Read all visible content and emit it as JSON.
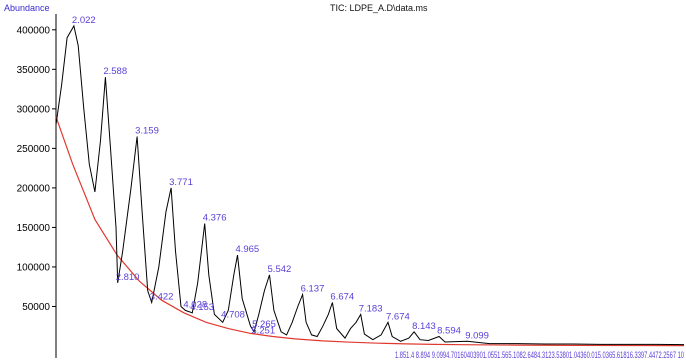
{
  "chart_data": {
    "type": "line",
    "title": "TIC: LDPE_A.D\\data.ms",
    "ylabel": "Abundance",
    "xlabel": "",
    "ylim": [
      0,
      420000
    ],
    "xlim": [
      1.7,
      13.0
    ],
    "y_ticks": [
      50000,
      100000,
      150000,
      200000,
      250000,
      300000,
      350000,
      400000
    ],
    "y_tick_labels": [
      "50000",
      "100000",
      "150000",
      "200000",
      "250000",
      "300000",
      "350000",
      "400000"
    ],
    "grid": false,
    "colors": {
      "trace": "#000000",
      "baseline": "#e03a2f",
      "labels": "#5b3fd8",
      "axis": "#000000"
    },
    "series": [
      {
        "values": [
          [
            1.7,
            280000
          ],
          [
            1.8,
            330000
          ],
          [
            1.9,
            390000
          ],
          [
            2.022,
            405000
          ],
          [
            2.1,
            380000
          ],
          [
            2.2,
            300000
          ],
          [
            2.3,
            230000
          ],
          [
            2.4,
            195000
          ],
          [
            2.5,
            260000
          ],
          [
            2.588,
            340000
          ],
          [
            2.68,
            250000
          ],
          [
            2.78,
            150000
          ],
          [
            2.81,
            80000
          ],
          [
            2.9,
            120000
          ],
          [
            3.05,
            200000
          ],
          [
            3.159,
            265000
          ],
          [
            3.25,
            170000
          ],
          [
            3.35,
            70000
          ],
          [
            3.422,
            55000
          ],
          [
            3.55,
            100000
          ],
          [
            3.68,
            170000
          ],
          [
            3.771,
            200000
          ],
          [
            3.85,
            120000
          ],
          [
            3.95,
            50000
          ],
          [
            4.028,
            45000
          ],
          [
            4.153,
            42000
          ],
          [
            4.25,
            80000
          ],
          [
            4.376,
            155000
          ],
          [
            4.45,
            90000
          ],
          [
            4.55,
            40000
          ],
          [
            4.7,
            30000
          ],
          [
            4.8,
            45000
          ],
          [
            4.9,
            90000
          ],
          [
            4.965,
            115000
          ],
          [
            5.05,
            60000
          ],
          [
            5.2,
            25000
          ],
          [
            5.265,
            18000
          ],
          [
            5.35,
            40000
          ],
          [
            5.45,
            70000
          ],
          [
            5.542,
            90000
          ],
          [
            5.62,
            45000
          ],
          [
            5.75,
            18000
          ],
          [
            5.85,
            14000
          ],
          [
            5.95,
            30000
          ],
          [
            6.05,
            50000
          ],
          [
            6.137,
            65000
          ],
          [
            6.2,
            30000
          ],
          [
            6.3,
            14000
          ],
          [
            6.4,
            12000
          ],
          [
            6.5,
            25000
          ],
          [
            6.6,
            40000
          ],
          [
            6.674,
            55000
          ],
          [
            6.75,
            22000
          ],
          [
            6.9,
            10000
          ],
          [
            7.0,
            22000
          ],
          [
            7.1,
            30000
          ],
          [
            7.183,
            40000
          ],
          [
            7.25,
            15000
          ],
          [
            7.4,
            8000
          ],
          [
            7.55,
            14000
          ],
          [
            7.674,
            30000
          ],
          [
            7.75,
            12000
          ],
          [
            7.9,
            6000
          ],
          [
            8.05,
            10000
          ],
          [
            8.143,
            18000
          ],
          [
            8.25,
            8000
          ],
          [
            8.4,
            7000
          ],
          [
            8.594,
            12000
          ],
          [
            8.7,
            5000
          ],
          [
            9.099,
            6000
          ],
          [
            9.5,
            3000
          ],
          [
            10.0,
            3000
          ],
          [
            10.5,
            2500
          ],
          [
            11.0,
            2500
          ],
          [
            11.5,
            2000
          ],
          [
            12.0,
            2000
          ],
          [
            12.5,
            2000
          ],
          [
            13.0,
            1800
          ]
        ]
      },
      {
        "values": [
          [
            1.7,
            290000
          ],
          [
            2.0,
            230000
          ],
          [
            2.4,
            160000
          ],
          [
            2.8,
            115000
          ],
          [
            3.2,
            82000
          ],
          [
            3.6,
            58000
          ],
          [
            4.0,
            42000
          ],
          [
            4.4,
            30000
          ],
          [
            4.8,
            22000
          ],
          [
            5.2,
            16000
          ],
          [
            5.6,
            12000
          ],
          [
            6.0,
            9000
          ],
          [
            6.5,
            6500
          ],
          [
            7.0,
            4800
          ],
          [
            7.5,
            3600
          ],
          [
            8.0,
            2700
          ],
          [
            8.5,
            2000
          ],
          [
            9.0,
            1600
          ],
          [
            10.0,
            1100
          ],
          [
            11.0,
            800
          ],
          [
            12.0,
            600
          ],
          [
            13.0,
            500
          ]
        ]
      }
    ],
    "peak_labels": [
      {
        "x": 2.022,
        "y": 405000,
        "text": "2.022"
      },
      {
        "x": 2.588,
        "y": 340000,
        "text": "2.588"
      },
      {
        "x": 3.159,
        "y": 265000,
        "text": "3.159"
      },
      {
        "x": 3.771,
        "y": 200000,
        "text": "3.771"
      },
      {
        "x": 4.376,
        "y": 155000,
        "text": "4.376"
      },
      {
        "x": 2.81,
        "y": 80000,
        "text": "2.810"
      },
      {
        "x": 4.965,
        "y": 115000,
        "text": "4.965"
      },
      {
        "x": 3.422,
        "y": 55000,
        "text": "3.422"
      },
      {
        "x": 5.542,
        "y": 90000,
        "text": "5.542"
      },
      {
        "x": 4.028,
        "y": 45000,
        "text": "4.028"
      },
      {
        "x": 4.153,
        "y": 42000,
        "text": "4.153"
      },
      {
        "x": 6.137,
        "y": 65000,
        "text": "6.137"
      },
      {
        "x": 4.708,
        "y": 32000,
        "text": "4.708"
      },
      {
        "x": 6.674,
        "y": 55000,
        "text": "6.674"
      },
      {
        "x": 5.265,
        "y": 20000,
        "text": "5.265"
      },
      {
        "x": 7.183,
        "y": 40000,
        "text": "7.183"
      },
      {
        "x": 5.251,
        "y": 12000,
        "text": "5.251"
      },
      {
        "x": 7.674,
        "y": 30000,
        "text": "7.674"
      },
      {
        "x": 8.143,
        "y": 18000,
        "text": "8.143"
      },
      {
        "x": 8.594,
        "y": 12000,
        "text": "8.594"
      },
      {
        "x": 9.099,
        "y": 6000,
        "text": "9.099"
      }
    ],
    "crowded_labels": "1.851.4 8.894 9.0994.70160403901.0551.565.1082.6484.3123.53801.04360.015.0365.61816.3397.4472.2567 10"
  }
}
